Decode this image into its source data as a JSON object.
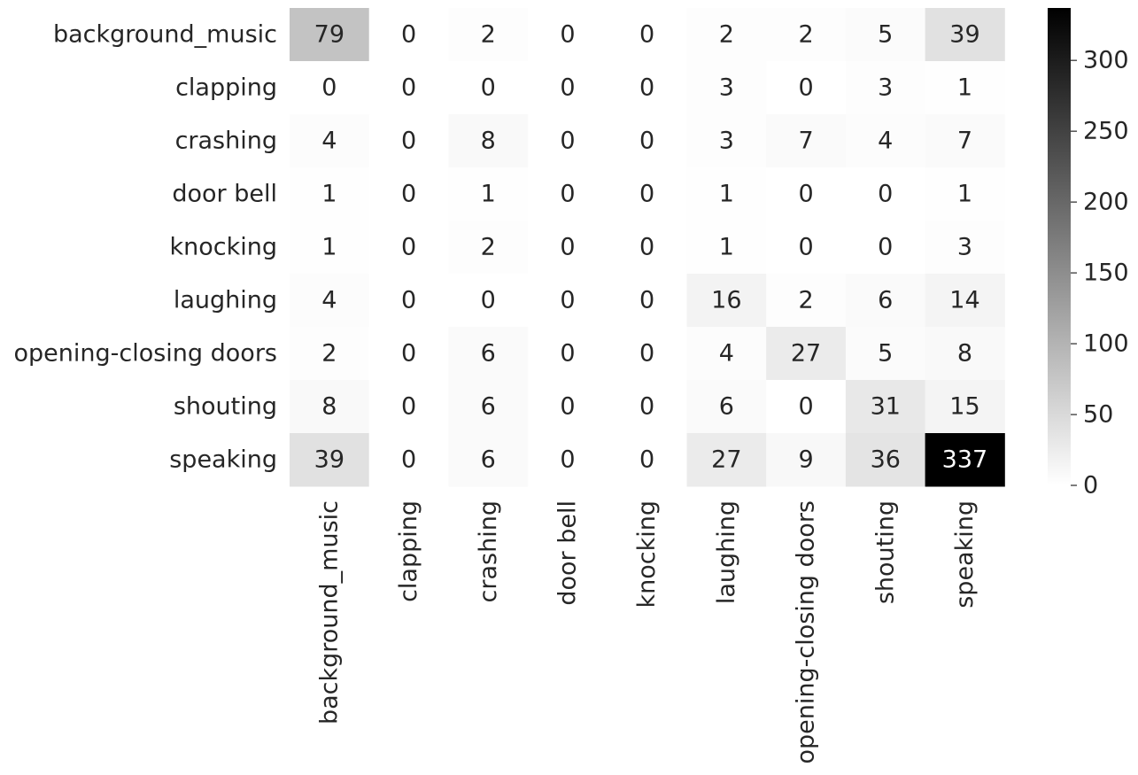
{
  "chart_data": {
    "type": "heatmap",
    "title": "",
    "xlabel": "",
    "ylabel": "",
    "row_labels": [
      "background_music",
      "clapping",
      "crashing",
      "door bell",
      "knocking",
      "laughing",
      "opening-closing doors",
      "shouting ",
      "speaking"
    ],
    "col_labels": [
      "background_music",
      "clapping",
      "crashing",
      "door bell",
      "knocking",
      "laughing",
      "opening-closing doors",
      "shouting",
      "speaking"
    ],
    "values": [
      [
        79,
        0,
        2,
        0,
        0,
        2,
        2,
        5,
        39
      ],
      [
        0,
        0,
        0,
        0,
        0,
        3,
        0,
        3,
        1
      ],
      [
        4,
        0,
        8,
        0,
        0,
        3,
        7,
        4,
        7
      ],
      [
        1,
        0,
        1,
        0,
        0,
        1,
        0,
        0,
        1
      ],
      [
        1,
        0,
        2,
        0,
        0,
        1,
        0,
        0,
        3
      ],
      [
        4,
        0,
        0,
        0,
        0,
        16,
        2,
        6,
        14
      ],
      [
        2,
        0,
        6,
        0,
        0,
        4,
        27,
        5,
        8
      ],
      [
        8,
        0,
        6,
        0,
        0,
        6,
        0,
        31,
        15
      ],
      [
        39,
        0,
        6,
        0,
        0,
        27,
        9,
        36,
        337
      ]
    ],
    "colormap": {
      "low_color": "#ffffff",
      "high_color": "#000000"
    },
    "colorbar": {
      "range": [
        0,
        337
      ],
      "ticks": [
        0,
        50,
        100,
        150,
        200,
        250,
        300
      ]
    },
    "annotations": true,
    "grid": false
  }
}
